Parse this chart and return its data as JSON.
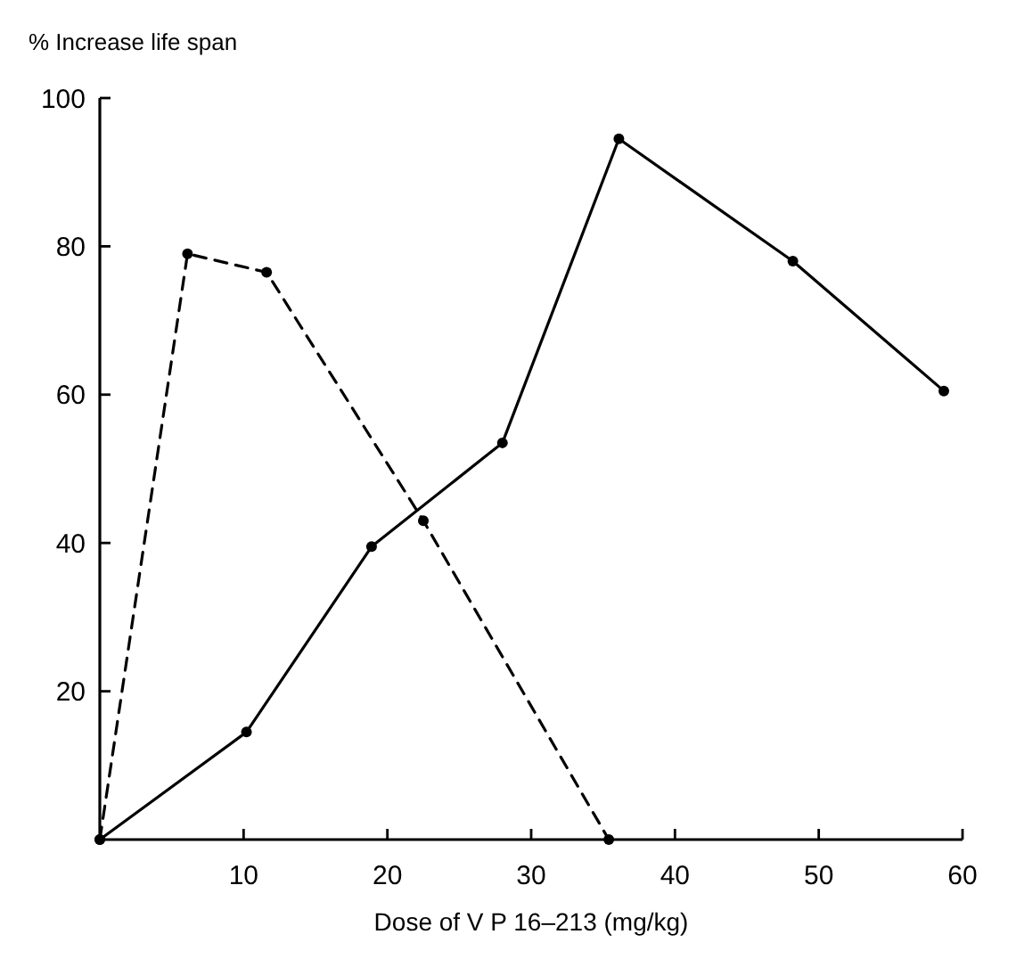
{
  "chart_data": {
    "type": "line",
    "xlabel": "Dose of V P 16–213 (mg/kg)",
    "ylabel": "% Increase life span",
    "xlim": [
      0,
      60
    ],
    "ylim": [
      0,
      100
    ],
    "xticks": [
      10,
      20,
      30,
      40,
      50,
      60
    ],
    "yticks": [
      20,
      40,
      60,
      80,
      100
    ],
    "grid": false,
    "marker": "circle",
    "series": [
      {
        "color": "#000000",
        "line_style": "dashed",
        "x": [
          0,
          6.1,
          11.6,
          22.5,
          35.4
        ],
        "values": [
          0,
          79,
          76.5,
          43,
          0
        ]
      },
      {
        "color": "#000000",
        "line_style": "solid",
        "x": [
          0,
          10.2,
          18.9,
          28,
          36.1,
          48.2,
          58.7
        ],
        "values": [
          0,
          14.5,
          39.5,
          53.5,
          94.5,
          78,
          60.5
        ]
      }
    ]
  }
}
